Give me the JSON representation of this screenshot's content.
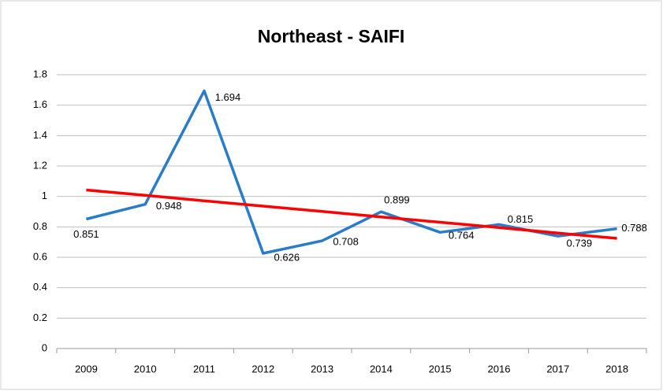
{
  "chart_data": {
    "type": "line",
    "title": "Northeast - SAIFI",
    "categories": [
      "2009",
      "2010",
      "2011",
      "2012",
      "2013",
      "2014",
      "2015",
      "2016",
      "2017",
      "2018"
    ],
    "series": [
      {
        "color": "#2a7bc8",
        "values": [
          0.851,
          0.948,
          1.694,
          0.626,
          0.708,
          0.899,
          0.764,
          0.815,
          0.739,
          0.788
        ],
        "data_labels": true
      },
      {
        "color": "#ff0000",
        "values": [
          1.042,
          1.007,
          0.971,
          0.936,
          0.901,
          0.865,
          0.83,
          0.795,
          0.759,
          0.724
        ],
        "data_labels": false
      }
    ],
    "ylim": [
      0,
      1.8
    ],
    "yticks": [
      0,
      0.2,
      0.4,
      0.6,
      0.8,
      1,
      1.2,
      1.4,
      1.6,
      1.8
    ],
    "grid": true,
    "legend": false
  }
}
